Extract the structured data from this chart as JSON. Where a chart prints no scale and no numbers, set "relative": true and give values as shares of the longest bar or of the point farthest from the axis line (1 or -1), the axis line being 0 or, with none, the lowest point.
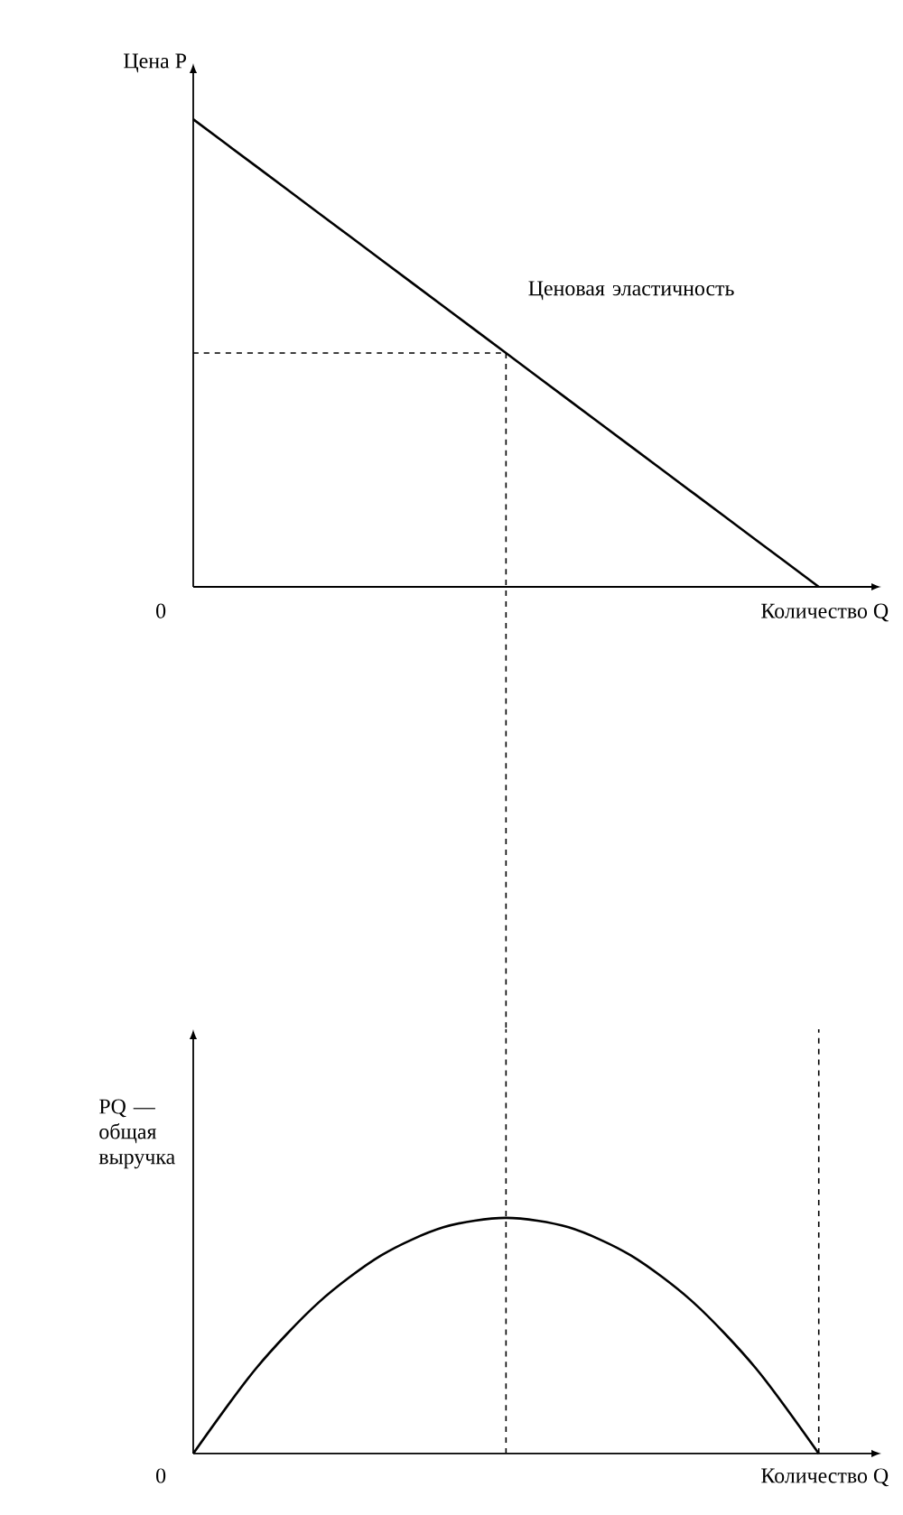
{
  "chart_data": [
    {
      "type": "line",
      "relative": true,
      "line_style": "solid",
      "ylabel": "Цена  P",
      "xlabel": "Количество  Q",
      "annotations": [
        "0",
        "Ценовая эластичность"
      ],
      "categories": [
        null,
        null,
        null,
        null,
        null,
        null,
        null,
        null,
        null,
        null,
        null,
        null
      ],
      "series": [
        {
          "color": "#000000",
          "values": [
            1,
            0.9,
            0.8,
            0.7,
            0.6,
            0.5,
            0.4,
            0.3,
            0.2,
            0.1,
            0,
            null
          ]
        },
        {
          "color": "#000000",
          "line_style": "dashed",
          "values": [
            0.5,
            0.5,
            0.5,
            0.5,
            0.5,
            0.5,
            null,
            null,
            null,
            null,
            null,
            null
          ]
        }
      ]
    },
    {
      "type": "line",
      "relative": true,
      "line_style": "solid",
      "ylabel": "PQ — общая выручка",
      "xlabel": "Количество  Q",
      "annotations": [
        "0"
      ],
      "categories": [
        null,
        null,
        null,
        null,
        null,
        null,
        null,
        null,
        null,
        null,
        null,
        null
      ],
      "series": [
        {
          "color": "#000000",
          "values": [
            0,
            0.36,
            0.64,
            0.84,
            0.96,
            1,
            0.96,
            0.84,
            0.64,
            0.36,
            0,
            null
          ]
        }
      ]
    }
  ]
}
